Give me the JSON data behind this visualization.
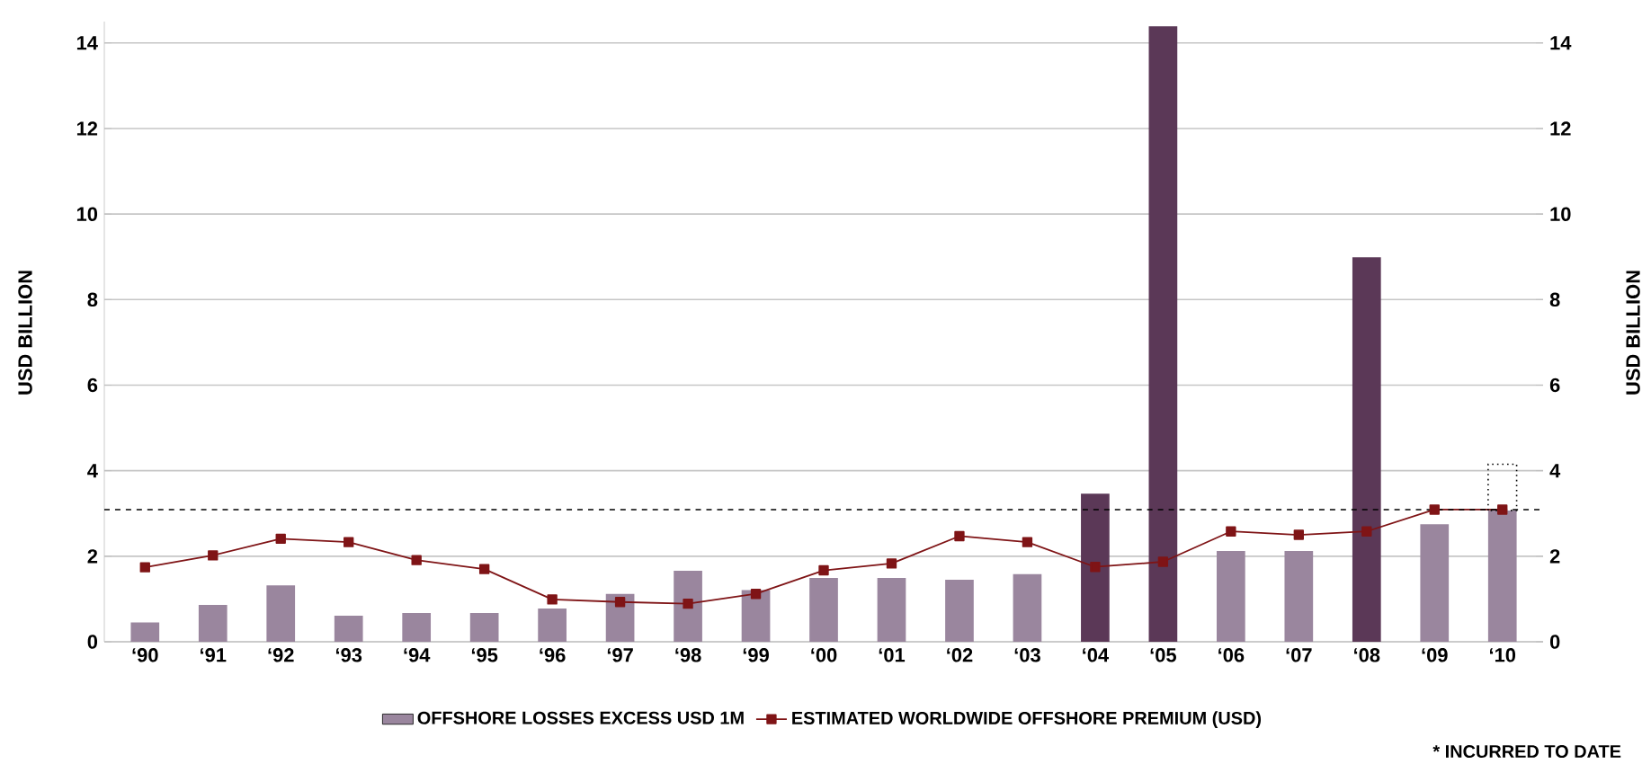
{
  "chart_data": {
    "type": "bar",
    "categories": [
      "‘90",
      "‘91",
      "‘92",
      "‘93",
      "‘94",
      "‘95",
      "‘96",
      "‘97",
      "‘98",
      "‘99",
      "‘00",
      "‘01",
      "‘02",
      "‘03",
      "‘04",
      "‘05",
      "‘06",
      "‘07",
      "‘08",
      "‘09",
      "‘10"
    ],
    "series": [
      {
        "name": "OFFSHORE LOSSES EXCESS USD 1M",
        "colors": [
          "#9a869e",
          "#9a869e",
          "#9a869e",
          "#9a869e",
          "#9a869e",
          "#9a869e",
          "#9a869e",
          "#9a869e",
          "#9a869e",
          "#9a869e",
          "#9a869e",
          "#9a869e",
          "#9a869e",
          "#9a869e",
          "#5b3857",
          "#5b3857",
          "#9a869e",
          "#9a869e",
          "#5b3857",
          "#9a869e",
          "#9a869e"
        ],
        "values": [
          0.45,
          0.86,
          1.32,
          0.61,
          0.67,
          0.67,
          0.78,
          1.12,
          1.66,
          1.21,
          1.49,
          1.49,
          1.45,
          1.58,
          3.46,
          14.39,
          2.12,
          2.12,
          8.99,
          2.75,
          3.07
        ]
      },
      {
        "name": "ESTIMATED WORLDWIDE OFFSHORE PREMIUM (USD)",
        "type": "line",
        "color": "#7f1416",
        "marker": "square",
        "values": [
          1.74,
          2.02,
          2.41,
          2.33,
          1.91,
          1.7,
          0.99,
          0.93,
          0.89,
          1.12,
          1.67,
          1.83,
          2.47,
          2.33,
          1.75,
          1.87,
          2.58,
          2.5,
          2.58,
          3.09,
          3.09
        ]
      },
      {
        "type": "bar",
        "color": "#000000",
        "line_style": "dotted",
        "base": [
          null,
          null,
          null,
          null,
          null,
          null,
          null,
          null,
          null,
          null,
          null,
          null,
          null,
          null,
          null,
          null,
          null,
          null,
          null,
          null,
          3.07
        ],
        "values": [
          null,
          null,
          null,
          null,
          null,
          null,
          null,
          null,
          null,
          null,
          null,
          null,
          null,
          null,
          null,
          null,
          null,
          null,
          null,
          null,
          1.08
        ]
      }
    ],
    "ylabel": "USD BILLION",
    "y2label": "USD BILLION",
    "ylim": [
      0,
      14.5
    ],
    "yticks": [
      0,
      2,
      4,
      6,
      8,
      10,
      12,
      14
    ],
    "y2lim": [
      0,
      14.5
    ],
    "y2ticks": [
      0,
      2,
      4,
      6,
      8,
      10,
      12,
      14
    ],
    "ref_lines": [
      {
        "axis": "y",
        "value": 3.09,
        "color": "#000000",
        "line_style": "dashed"
      }
    ],
    "grid": "y",
    "legend": "bottom",
    "annotations": [
      "* INCURRED TO DATE"
    ]
  }
}
